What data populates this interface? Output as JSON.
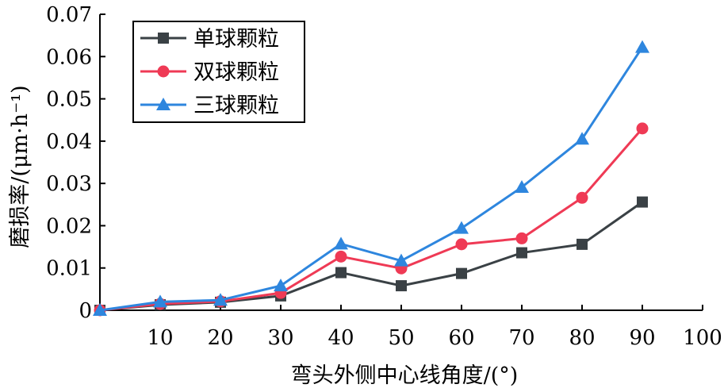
{
  "chart_data": {
    "type": "line",
    "title": "",
    "xlabel": "弯头外侧中心线角度/(°)",
    "ylabel": "磨损率/(μm·h⁻¹)",
    "xlim": [
      0,
      100
    ],
    "ylim": [
      0,
      0.07
    ],
    "x_ticks": [
      10,
      20,
      30,
      40,
      50,
      60,
      70,
      80,
      90,
      100
    ],
    "x_tick_labels": [
      "10",
      "20",
      "30",
      "40",
      "50",
      "60",
      "70",
      "80",
      "90",
      "100"
    ],
    "y_ticks": [
      0,
      0.01,
      0.02,
      0.03,
      0.04,
      0.05,
      0.06,
      0.07
    ],
    "y_tick_labels": [
      "0",
      "0.01",
      "0.02",
      "0.03",
      "0.04",
      "0.05",
      "0.06",
      "0.07"
    ],
    "grid": false,
    "legend_position": "top-left",
    "x": [
      0,
      10,
      20,
      30,
      40,
      50,
      60,
      70,
      80,
      90
    ],
    "series": [
      {
        "name": "单球颗粒",
        "color": "#3a4145",
        "marker": "square",
        "values": [
          0,
          0.0013,
          0.0019,
          0.0034,
          0.0089,
          0.0058,
          0.0087,
          0.0136,
          0.0156,
          0.0256
        ]
      },
      {
        "name": "双球颗粒",
        "color": "#ef3a55",
        "marker": "circle",
        "values": [
          0,
          0.0015,
          0.0021,
          0.0041,
          0.0127,
          0.0099,
          0.0156,
          0.017,
          0.0266,
          0.043
        ]
      },
      {
        "name": "三球颗粒",
        "color": "#2e86de",
        "marker": "triangle",
        "values": [
          0,
          0.002,
          0.0024,
          0.0058,
          0.0157,
          0.0117,
          0.0194,
          0.0291,
          0.0405,
          0.0622
        ]
      }
    ]
  }
}
